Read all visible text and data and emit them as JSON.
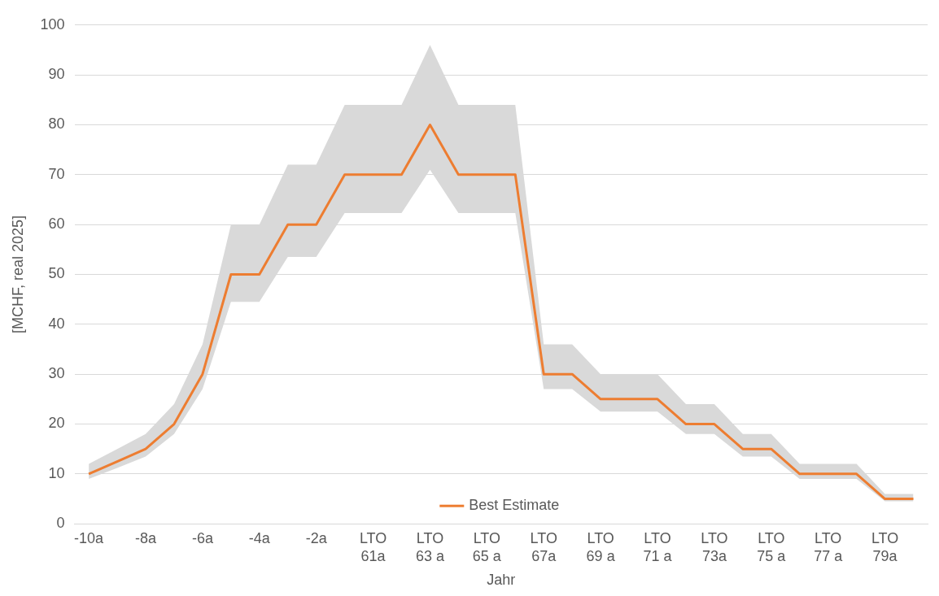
{
  "chart_data": {
    "type": "line",
    "xlabel": "Jahr",
    "ylabel": "[MCHF, real 2025]",
    "categories": [
      "-10a",
      null,
      "-8a",
      null,
      "-6a",
      null,
      "-4a",
      null,
      "-2a",
      null,
      "LTO 61a",
      null,
      "LTO 63 a",
      null,
      "LTO 65 a",
      null,
      "LTO 67a",
      null,
      "LTO 69 a",
      null,
      "LTO 71 a",
      null,
      "LTO 73a",
      null,
      "LTO 75 a",
      null,
      "LTO 77 a",
      null,
      "LTO 79a",
      null
    ],
    "series": [
      {
        "name": "Best Estimate",
        "color": "#ed7d31",
        "values": [
          10,
          12.5,
          15,
          20,
          30,
          50,
          50,
          60,
          60,
          70,
          70,
          70,
          80,
          70,
          70,
          70,
          30,
          30,
          25,
          25,
          25,
          20,
          20,
          15,
          15,
          10,
          10,
          10,
          5,
          5
        ],
        "lower": [
          9,
          11.2,
          13.5,
          18,
          27,
          44.5,
          44.5,
          53.5,
          53.5,
          62.3,
          62.3,
          62.3,
          71,
          62.3,
          62.3,
          62.3,
          27,
          27,
          22.5,
          22.5,
          22.5,
          18,
          18,
          13.5,
          13.5,
          9,
          9,
          9,
          4.5,
          4.5
        ],
        "upper": [
          12,
          15,
          18,
          24,
          36,
          60,
          60,
          72,
          72,
          84,
          84,
          84,
          96,
          84,
          84,
          84,
          36,
          36,
          30,
          30,
          30,
          24,
          24,
          18,
          18,
          12,
          12,
          12,
          6,
          6
        ]
      }
    ],
    "ylim": [
      0,
      100
    ],
    "yticks": [
      0,
      10,
      20,
      30,
      40,
      50,
      60,
      70,
      80,
      90,
      100
    ],
    "grid": "y",
    "legend": "bottom",
    "marker": "none",
    "line_style": "solid"
  }
}
